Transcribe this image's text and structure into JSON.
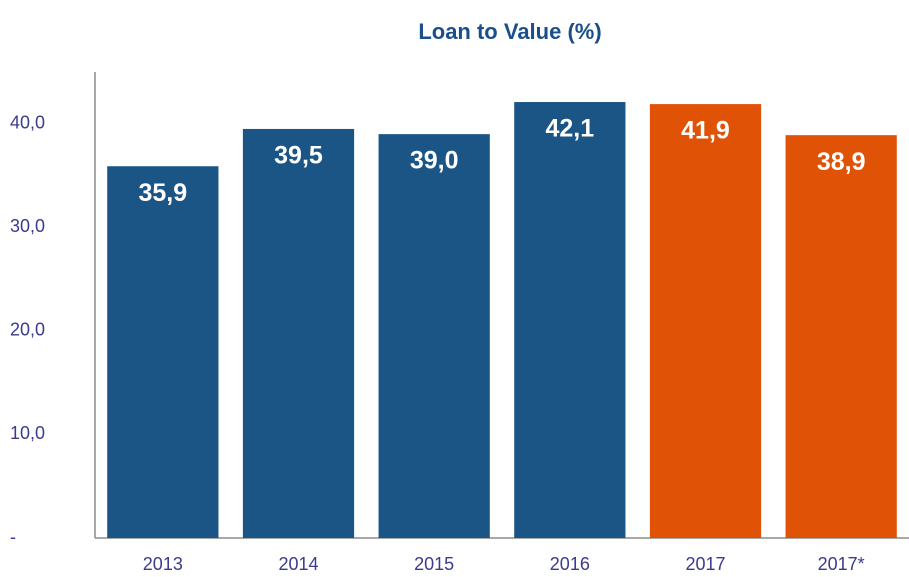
{
  "chart_data": {
    "type": "bar",
    "title": "Loan to Value (%)",
    "categories": [
      "2013",
      "2014",
      "2015",
      "2016",
      "2017",
      "2017*"
    ],
    "values": [
      35.9,
      39.5,
      39.0,
      42.1,
      41.9,
      38.9
    ],
    "value_labels": [
      "35,9",
      "39,5",
      "39,0",
      "42,1",
      "41,9",
      "38,9"
    ],
    "colors": [
      "#1b5586",
      "#1b5586",
      "#1b5586",
      "#1b5586",
      "#e05206",
      "#e05206"
    ],
    "ylim": [
      0,
      45
    ],
    "yticks": [
      {
        "value": 0,
        "label": "-"
      },
      {
        "value": 10,
        "label": "10,0"
      },
      {
        "value": 20,
        "label": "20,0"
      },
      {
        "value": 30,
        "label": "30,0"
      },
      {
        "value": 40,
        "label": "40,0"
      }
    ],
    "grid": false
  }
}
